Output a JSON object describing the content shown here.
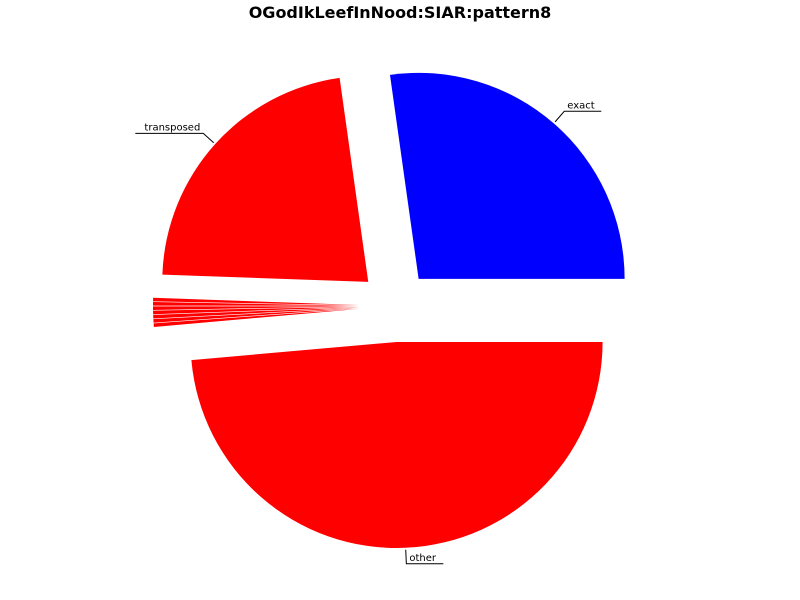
{
  "chart_data": {
    "type": "pie",
    "title": "OGodIkLeefInNood:SIAR:pattern8",
    "slices": [
      {
        "label": "exact",
        "value": 0.2722,
        "color": "#0000ff"
      },
      {
        "label": "transposed",
        "value": 0.2222,
        "color": "#ff0000"
      },
      {
        "label": "",
        "value": 0.0028,
        "color": "#ff0000"
      },
      {
        "label": "",
        "value": 0.0028,
        "color": "#ff0000"
      },
      {
        "label": "",
        "value": 0.0028,
        "color": "#ff0000"
      },
      {
        "label": "",
        "value": 0.0028,
        "color": "#ff0000"
      },
      {
        "label": "",
        "value": 0.0028,
        "color": "#ff0000"
      },
      {
        "label": "",
        "value": 0.0028,
        "color": "#ff0000"
      },
      {
        "label": "",
        "value": 0.0028,
        "color": "#ff0000"
      },
      {
        "label": "other",
        "value": 0.486,
        "color": "#ff0000"
      }
    ],
    "legend": "none",
    "grid": false
  }
}
